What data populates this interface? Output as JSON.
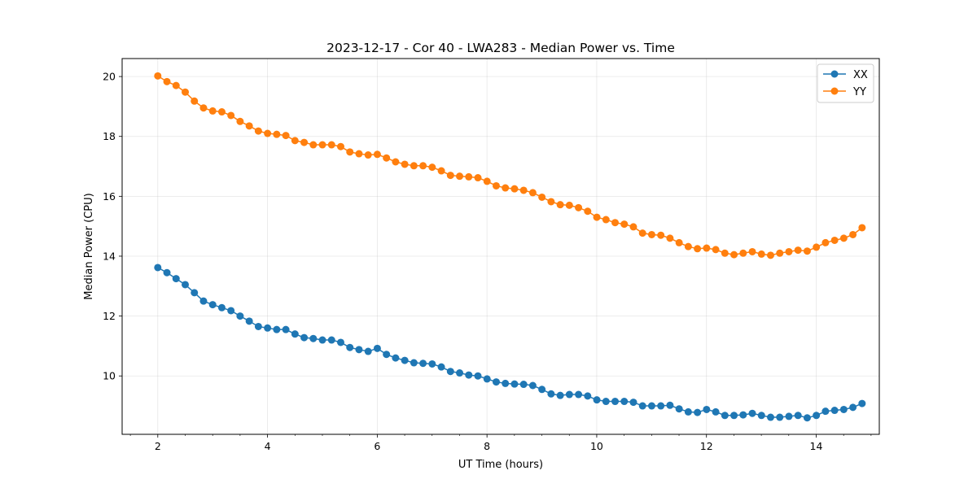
{
  "chart_data": {
    "type": "line",
    "title": "2023-12-17 - Cor 40 - LWA283 - Median Power vs. Time",
    "xlabel": "UT Time (hours)",
    "ylabel": "Median Power (CPU)",
    "xlim": [
      1.35,
      15.15
    ],
    "ylim": [
      8.05,
      20.6
    ],
    "xticks": [
      2,
      4,
      6,
      8,
      10,
      12,
      14
    ],
    "xtick_labels": [
      "2",
      "4",
      "6",
      "8",
      "10",
      "12",
      "14"
    ],
    "yticks": [
      10,
      12,
      14,
      16,
      18,
      20
    ],
    "ytick_labels": [
      "10",
      "12",
      "14",
      "16",
      "18",
      "20"
    ],
    "x_minor_step": 0.5,
    "grid": true,
    "legend_position": "top-right",
    "x_start": 2.0,
    "x_step": 0.1667,
    "series": [
      {
        "name": "XX",
        "color": "#1f77b4",
        "values": [
          13.62,
          13.45,
          13.25,
          13.05,
          12.78,
          12.5,
          12.38,
          12.28,
          12.18,
          12.0,
          11.83,
          11.65,
          11.6,
          11.55,
          11.55,
          11.4,
          11.28,
          11.25,
          11.2,
          11.2,
          11.12,
          10.95,
          10.88,
          10.82,
          10.92,
          10.72,
          10.6,
          10.52,
          10.44,
          10.42,
          10.4,
          10.3,
          10.15,
          10.1,
          10.03,
          10.0,
          9.9,
          9.8,
          9.75,
          9.73,
          9.72,
          9.68,
          9.55,
          9.4,
          9.35,
          9.38,
          9.38,
          9.33,
          9.2,
          9.15,
          9.15,
          9.15,
          9.12,
          9.0,
          9.0,
          9.0,
          9.02,
          8.9,
          8.8,
          8.78,
          8.88,
          8.8,
          8.68,
          8.68,
          8.7,
          8.75,
          8.68,
          8.62,
          8.62,
          8.65,
          8.68,
          8.6,
          8.68,
          8.82,
          8.85,
          8.88,
          8.95,
          9.08
        ]
      },
      {
        "name": "YY",
        "color": "#ff7f0e",
        "values": [
          20.02,
          19.83,
          19.7,
          19.48,
          19.18,
          18.95,
          18.85,
          18.82,
          18.7,
          18.5,
          18.35,
          18.18,
          18.1,
          18.07,
          18.03,
          17.86,
          17.8,
          17.72,
          17.72,
          17.72,
          17.66,
          17.48,
          17.42,
          17.38,
          17.4,
          17.28,
          17.15,
          17.07,
          17.02,
          17.02,
          16.97,
          16.85,
          16.7,
          16.67,
          16.65,
          16.62,
          16.5,
          16.35,
          16.28,
          16.25,
          16.2,
          16.12,
          15.97,
          15.82,
          15.72,
          15.7,
          15.62,
          15.5,
          15.3,
          15.22,
          15.12,
          15.07,
          14.98,
          14.77,
          14.72,
          14.7,
          14.6,
          14.45,
          14.32,
          14.25,
          14.27,
          14.22,
          14.1,
          14.05,
          14.1,
          14.15,
          14.07,
          14.03,
          14.1,
          14.15,
          14.2,
          14.17,
          14.3,
          14.45,
          14.53,
          14.6,
          14.72,
          14.95
        ]
      }
    ]
  }
}
